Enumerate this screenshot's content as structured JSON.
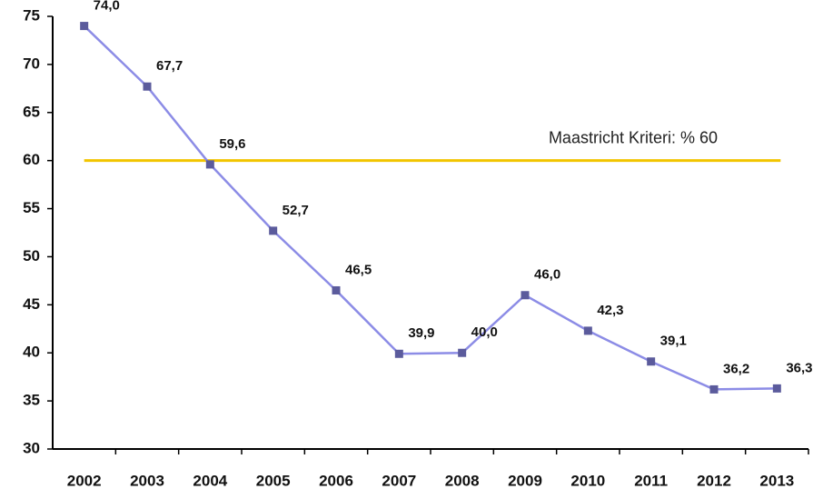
{
  "chart_data": {
    "type": "line",
    "categories": [
      "2002",
      "2003",
      "2004",
      "2005",
      "2006",
      "2007",
      "2008",
      "2009",
      "2010",
      "2011",
      "2012",
      "2013"
    ],
    "series": [
      {
        "color": "#8c8ce6",
        "marker_color": "#5b5b9c",
        "values": [
          74.0,
          67.7,
          59.6,
          52.7,
          46.5,
          39.9,
          40.0,
          46.0,
          42.3,
          39.1,
          36.2,
          36.3
        ],
        "value_labels": [
          "74,0",
          "67,7",
          "59,6",
          "52,7",
          "46,5",
          "39,9",
          "40,0",
          "46,0",
          "42,3",
          "39,1",
          "36,2",
          "36,3"
        ]
      }
    ],
    "ylim": [
      30,
      75
    ],
    "yticks": [
      30,
      35,
      40,
      45,
      50,
      55,
      60,
      65,
      70,
      75
    ],
    "reference_line": {
      "value": 60,
      "label": "Maastricht Kriteri: % 60",
      "color": "#f2c500"
    }
  }
}
